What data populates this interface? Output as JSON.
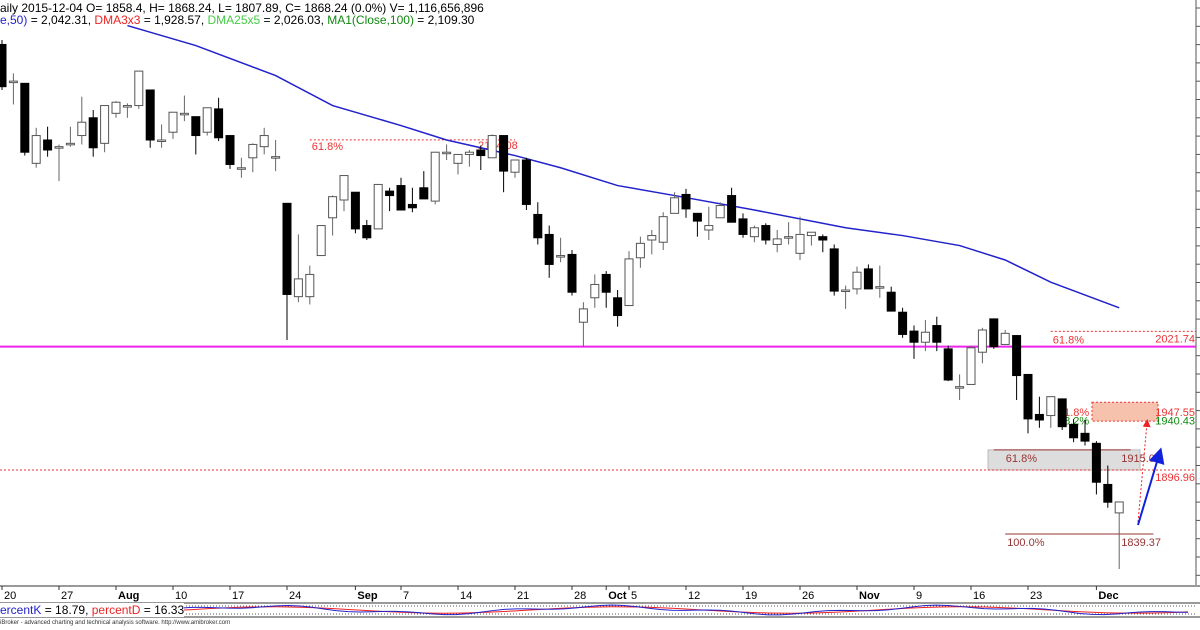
{
  "header": {
    "line1": "aily 2015-12-04 O= 1858.4, H= 1868.24, L= 1807.89, C= 1868.24 (0.0%) V= 1,116,656,896",
    "ma50_label": "e,50)",
    "ma50_value": " = 2,042.31, ",
    "dma3_label": "DMA3x3",
    "dma3_value": " = 1,928.57, ",
    "dma25_label": "DMA25x5",
    "dma25_value": " = 2,026.03, ",
    "ma100_label": "MA1(Close,100)",
    "ma100_value": " = 2,109.30"
  },
  "stoch": {
    "k_label": "ercentK",
    "k_value": " = 18.79, ",
    "d_label": "percentD",
    "d_value": " = 16.33"
  },
  "footer": "iBroker - advanced charting and technical analysis software. http://www.amibroker.com",
  "colors": {
    "ma": "#2222cc",
    "fib": "#ee3333",
    "magenta": "#ee22ee",
    "fib100": "#993333",
    "green": "#118811"
  },
  "chart_data": {
    "type": "candlestick",
    "ohlc_order": [
      "open",
      "high",
      "low",
      "close"
    ],
    "candles": [
      [
        2280,
        2284,
        2239,
        2242
      ],
      [
        2247,
        2254,
        2226,
        2247
      ],
      [
        2245,
        2245,
        2180,
        2183
      ],
      [
        2173,
        2205,
        2169,
        2198
      ],
      [
        2194,
        2206,
        2179,
        2185
      ],
      [
        2188,
        2190,
        2157,
        2188
      ],
      [
        2190,
        2206,
        2188,
        2191
      ],
      [
        2198,
        2233,
        2190,
        2210
      ],
      [
        2214,
        2221,
        2179,
        2187
      ],
      [
        2191,
        2225,
        2183,
        2225
      ],
      [
        2218,
        2229,
        2214,
        2228
      ],
      [
        2225,
        2227,
        2214,
        2225
      ],
      [
        2225,
        2256,
        2222,
        2256
      ],
      [
        2239,
        2239,
        2187,
        2194
      ],
      [
        2194,
        2208,
        2187,
        2194
      ],
      [
        2201,
        2219,
        2195,
        2219
      ],
      [
        2218,
        2234,
        2211,
        2218
      ],
      [
        2215,
        2215,
        2181,
        2198
      ],
      [
        2201,
        2223,
        2198,
        2223
      ],
      [
        2222,
        2232,
        2193,
        2196
      ],
      [
        2198,
        2198,
        2168,
        2172
      ],
      [
        2169,
        2178,
        2160,
        2169
      ],
      [
        2178,
        2191,
        2165,
        2190
      ],
      [
        2188,
        2205,
        2181,
        2198
      ],
      [
        2179,
        2194,
        2166,
        2179
      ],
      [
        2137,
        2137,
        2014,
        2055
      ],
      [
        2053,
        2109,
        2048,
        2069
      ],
      [
        2053,
        2081,
        2046,
        2073
      ],
      [
        2090,
        2117,
        2090,
        2117
      ],
      [
        2124,
        2144,
        2108,
        2143
      ],
      [
        2140,
        2162,
        2130,
        2162
      ],
      [
        2147,
        2147,
        2110,
        2114
      ],
      [
        2117,
        2122,
        2104,
        2106
      ],
      [
        2114,
        2154,
        2114,
        2154
      ],
      [
        2148,
        2151,
        2130,
        2144
      ],
      [
        2153,
        2160,
        2131,
        2131
      ],
      [
        2136,
        2151,
        2129,
        2133
      ],
      [
        2151,
        2166,
        2141,
        2141
      ],
      [
        2139,
        2183,
        2136,
        2183
      ],
      [
        2183,
        2190,
        2176,
        2183
      ],
      [
        2173,
        2181,
        2163,
        2181
      ],
      [
        2181,
        2185,
        2170,
        2183
      ],
      [
        2185,
        2189,
        2167,
        2180
      ],
      [
        2178,
        2199,
        2178,
        2198
      ],
      [
        2198,
        2198,
        2147,
        2166
      ],
      [
        2165,
        2176,
        2160,
        2176
      ],
      [
        2176,
        2178,
        2131,
        2136
      ],
      [
        2127,
        2138,
        2100,
        2106
      ],
      [
        2109,
        2117,
        2070,
        2082
      ],
      [
        2090,
        2106,
        2084,
        2090
      ],
      [
        2091,
        2095,
        2054,
        2057
      ],
      [
        2030,
        2048,
        2008,
        2042
      ],
      [
        2052,
        2073,
        2043,
        2064
      ],
      [
        2073,
        2076,
        2043,
        2057
      ],
      [
        2052,
        2059,
        2026,
        2036
      ],
      [
        2045,
        2094,
        2045,
        2087
      ],
      [
        2088,
        2107,
        2079,
        2101
      ],
      [
        2104,
        2113,
        2091,
        2108
      ],
      [
        2102,
        2129,
        2095,
        2125
      ],
      [
        2128,
        2147,
        2128,
        2142
      ],
      [
        2145,
        2150,
        2124,
        2132
      ],
      [
        2128,
        2128,
        2107,
        2121
      ],
      [
        2113,
        2134,
        2104,
        2117
      ],
      [
        2124,
        2138,
        2124,
        2135
      ],
      [
        2144,
        2151,
        2120,
        2120
      ],
      [
        2123,
        2128,
        2106,
        2109
      ],
      [
        2107,
        2117,
        2102,
        2115
      ],
      [
        2117,
        2119,
        2100,
        2104
      ],
      [
        2100,
        2113,
        2093,
        2105
      ],
      [
        2107,
        2120,
        2100,
        2107
      ],
      [
        2092,
        2125,
        2086,
        2109
      ],
      [
        2108,
        2111,
        2099,
        2111
      ],
      [
        2107,
        2109,
        2093,
        2104
      ],
      [
        2096,
        2100,
        2054,
        2058
      ],
      [
        2059,
        2063,
        2042,
        2059
      ],
      [
        2060,
        2080,
        2055,
        2075
      ],
      [
        2078,
        2082,
        2060,
        2060
      ],
      [
        2062,
        2081,
        2052,
        2062
      ],
      [
        2057,
        2062,
        2040,
        2040
      ],
      [
        2039,
        2043,
        2016,
        2019
      ],
      [
        2022,
        2027,
        1997,
        2012
      ],
      [
        2012,
        2032,
        2004,
        2021
      ],
      [
        2027,
        2035,
        2004,
        2012
      ],
      [
        2006,
        2009,
        1977,
        1978
      ],
      [
        1972,
        1983,
        1960,
        1972
      ],
      [
        1974,
        2009,
        1974,
        2007
      ],
      [
        2003,
        2025,
        1993,
        2023
      ],
      [
        2033,
        2033,
        2006,
        2008
      ],
      [
        2010,
        2023,
        2010,
        2020
      ],
      [
        2018,
        2018,
        1960,
        1982
      ],
      [
        1983,
        1983,
        1930,
        1943
      ],
      [
        1947,
        1963,
        1935,
        1942
      ],
      [
        1946,
        1963,
        1935,
        1963
      ],
      [
        1961,
        1961,
        1933,
        1936
      ],
      [
        1938,
        1943,
        1922,
        1926
      ],
      [
        1930,
        1942,
        1919,
        1923
      ],
      [
        1921,
        1923,
        1875,
        1886
      ],
      [
        1884,
        1901,
        1863,
        1868
      ],
      [
        1858.4,
        1868.24,
        1807.89,
        1868.24
      ]
    ],
    "ma_line": [
      [
        12,
        2297
      ],
      [
        18,
        2279
      ],
      [
        25,
        2252
      ],
      [
        30,
        2225
      ],
      [
        36,
        2207
      ],
      [
        40,
        2194
      ],
      [
        46,
        2180
      ],
      [
        50,
        2169
      ],
      [
        55,
        2153
      ],
      [
        60,
        2144
      ],
      [
        67,
        2131
      ],
      [
        75,
        2115
      ],
      [
        80,
        2108
      ],
      [
        85,
        2099
      ],
      [
        89,
        2086
      ],
      [
        93,
        2066
      ],
      [
        99,
        2043
      ]
    ],
    "x_ticks": [
      {
        "bar": 1,
        "label": "20"
      },
      {
        "bar": 6,
        "label": "27"
      },
      {
        "bar": 11,
        "label": "Aug",
        "bold": true
      },
      {
        "bar": 16,
        "label": "10"
      },
      {
        "bar": 21,
        "label": "17"
      },
      {
        "bar": 26,
        "label": "24"
      },
      {
        "bar": 32,
        "label": "Sep",
        "bold": true
      },
      {
        "bar": 36,
        "label": "7"
      },
      {
        "bar": 41,
        "label": "14"
      },
      {
        "bar": 46,
        "label": "21"
      },
      {
        "bar": 51,
        "label": "28"
      },
      {
        "bar": 54,
        "label": "Oct",
        "bold": true
      },
      {
        "bar": 56,
        "label": "5"
      },
      {
        "bar": 61,
        "label": "12"
      },
      {
        "bar": 66,
        "label": "19"
      },
      {
        "bar": 71,
        "label": "26"
      },
      {
        "bar": 76,
        "label": "Nov",
        "bold": true
      },
      {
        "bar": 81,
        "label": "9"
      },
      {
        "bar": 86,
        "label": "16"
      },
      {
        "bar": 91,
        "label": "23"
      },
      {
        "bar": 97,
        "label": "Dec",
        "bold": true
      }
    ],
    "horizontal_line": 2008,
    "fib_levels": [
      {
        "pct": "61.8%",
        "value": "2194.08",
        "price": 2194.08,
        "from_bar": 28,
        "to_bar": 46
      },
      {
        "pct": "61.8%",
        "value": "2021.74",
        "price": 2021.74,
        "from_bar": 93,
        "to_bar": 106
      },
      {
        "pct": "61.8%",
        "value": "1915.09",
        "price": 1915.09,
        "from_bar": 88,
        "to_bar": 100
      },
      {
        "pct": "",
        "value": "1896.96",
        "price": 1896.96,
        "from_bar": 1,
        "to_bar": 106
      },
      {
        "pct": "100.0%",
        "value": "1839.37",
        "price": 1839.37,
        "from_bar": 89,
        "to_bar": 102
      }
    ],
    "zone_labels": [
      {
        "pct": "61.8%",
        "value": "1947.55",
        "price": 1947.55
      },
      {
        "pct": "38.2%",
        "value": "1940.43",
        "price": 1940.43
      }
    ]
  }
}
